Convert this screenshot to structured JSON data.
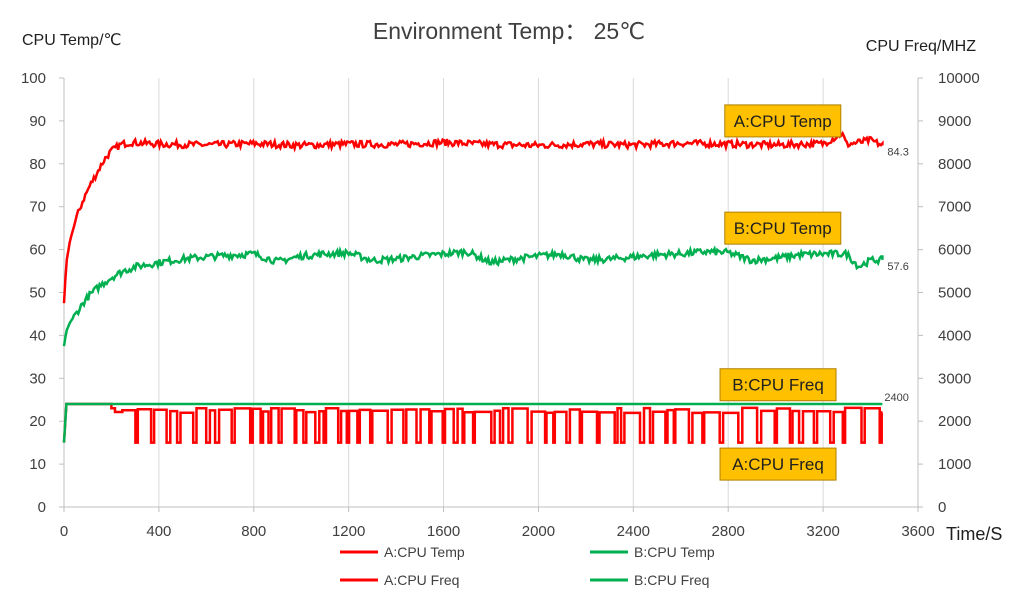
{
  "title": "Environment Temp： 25℃",
  "chart_data": {
    "type": "line",
    "title": "Environment Temp： 25℃",
    "ylabel": "CPU Temp/℃",
    "y2label": "CPU Freq/MHZ",
    "xlabel": "Time/S",
    "xlim": [
      0,
      3600
    ],
    "ylim": [
      0,
      100
    ],
    "y2lim": [
      0,
      10000
    ],
    "x_ticks": [
      "0",
      "400",
      "800",
      "1200",
      "1600",
      "2000",
      "2400",
      "2800",
      "3200",
      "3600"
    ],
    "y_ticks": [
      "0",
      "10",
      "20",
      "30",
      "40",
      "50",
      "60",
      "70",
      "80",
      "90",
      "100"
    ],
    "y2_ticks": [
      "0",
      "1000",
      "2000",
      "3000",
      "4000",
      "5000",
      "6000",
      "7000",
      "8000",
      "9000",
      "10000"
    ],
    "grid": "vertical",
    "legend_position": "bottom",
    "series": [
      {
        "name": "A:CPU Temp",
        "axis": "left",
        "color": "#ff0000",
        "end_label": "84.3",
        "x": [
          0,
          10,
          25,
          50,
          80,
          110,
          140,
          170,
          200,
          240,
          280,
          400,
          600,
          800,
          1000,
          1200,
          1400,
          1600,
          1800,
          2000,
          2200,
          2400,
          2600,
          2800,
          3000,
          3200,
          3280,
          3300,
          3400,
          3450
        ],
        "y": [
          47.5,
          57,
          62,
          67,
          71.5,
          75,
          78,
          81,
          83,
          84.5,
          85,
          84.6,
          84.4,
          84.7,
          84.3,
          84.6,
          84.5,
          85,
          84.5,
          84.3,
          84.6,
          84.4,
          84.8,
          84.6,
          84.4,
          84.7,
          87,
          84.5,
          85.5,
          84.3
        ]
      },
      {
        "name": "B:CPU Temp",
        "axis": "left",
        "color": "#00b050",
        "end_label": "57.6",
        "x": [
          0,
          10,
          25,
          50,
          80,
          110,
          150,
          200,
          250,
          300,
          350,
          400,
          500,
          600,
          700,
          800,
          900,
          1000,
          1100,
          1200,
          1300,
          1400,
          1500,
          1600,
          1700,
          1800,
          1900,
          2000,
          2100,
          2200,
          2300,
          2400,
          2500,
          2600,
          2700,
          2800,
          2900,
          3000,
          3100,
          3200,
          3300,
          3350,
          3400,
          3450
        ],
        "y": [
          37.5,
          41,
          43,
          45,
          47.5,
          49.5,
          51.5,
          53.5,
          55,
          56,
          56.5,
          57,
          57.8,
          58.3,
          58.7,
          59,
          57.2,
          58.5,
          59,
          59.2,
          57.5,
          57.8,
          58.5,
          59,
          59.5,
          57,
          57.8,
          58.5,
          59,
          57.5,
          57.8,
          58.3,
          58.8,
          59,
          59.5,
          59.3,
          57.5,
          58,
          58.8,
          59,
          59,
          56,
          57.5,
          57.6
        ]
      },
      {
        "name": "A:CPU Freq",
        "axis": "right",
        "color": "#ff0000",
        "high": 2250,
        "low": 1500,
        "start": 200,
        "end": 3450,
        "x_start": [
          0,
          10
        ],
        "y_start": [
          1500,
          2400
        ]
      },
      {
        "name": "B:CPU Freq",
        "axis": "right",
        "color": "#00b050",
        "end_label": "2400",
        "x": [
          0,
          10,
          3450
        ],
        "y": [
          1500,
          2400,
          2400
        ]
      }
    ],
    "annotations": [
      {
        "text": "A:CPU Temp",
        "x": 3030,
        "y": 90
      },
      {
        "text": "B:CPU Temp",
        "x": 3030,
        "y": 65
      },
      {
        "text": "B:CPU Freq",
        "x": 3010,
        "y": 28.5
      },
      {
        "text": "A:CPU Freq",
        "x": 3010,
        "y": 10
      }
    ]
  }
}
